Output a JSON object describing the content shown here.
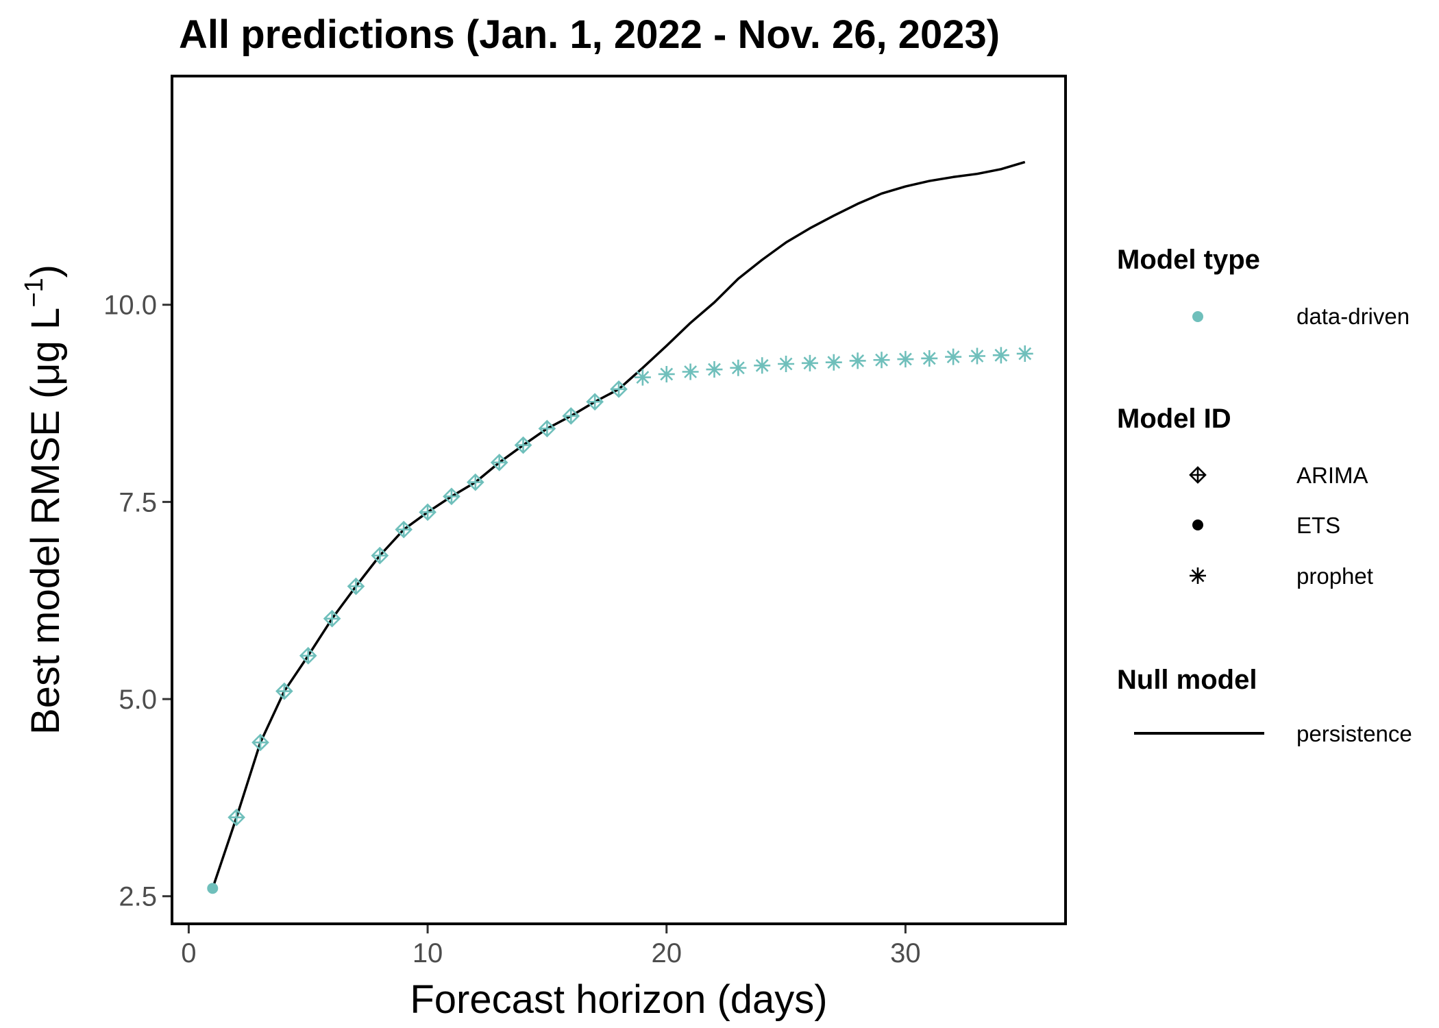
{
  "chart_data": {
    "type": "scatter",
    "title": "All predictions (Jan. 1, 2022 - Nov. 26, 2023)",
    "xlabel": "Forecast horizon (days)",
    "ylabel": "Best model RMSE (μg L⁻¹)",
    "ylabel_main": "Best model RMSE (μg L",
    "ylabel_sup": "−1",
    "ylabel_end": ")",
    "xlim": [
      -0.7,
      36.7
    ],
    "ylim": [
      2.15,
      12.9
    ],
    "x_ticks": [
      0,
      10,
      20,
      30
    ],
    "x_tick_labels": [
      "0",
      "10",
      "20",
      "30"
    ],
    "y_ticks": [
      2.5,
      5.0,
      7.5,
      10.0
    ],
    "y_tick_labels": [
      "2.5",
      "5.0",
      "7.5",
      "10.0"
    ],
    "grid": false,
    "legend_position": "right",
    "point_color": "#6fbfbb",
    "line_color": "#000000",
    "series": [
      {
        "name": "data-driven",
        "model_type": "data-driven",
        "x": [
          1,
          2,
          3,
          4,
          5,
          6,
          7,
          8,
          9,
          10,
          11,
          12,
          13,
          14,
          15,
          16,
          17,
          18,
          19,
          20,
          21,
          22,
          23,
          24,
          25,
          26,
          27,
          28,
          29,
          30,
          31,
          32,
          33,
          34,
          35
        ],
        "y": [
          2.6,
          3.5,
          4.45,
          5.1,
          5.55,
          6.02,
          6.43,
          6.82,
          7.15,
          7.37,
          7.57,
          7.75,
          8.0,
          8.22,
          8.43,
          8.59,
          8.77,
          8.93,
          9.08,
          9.12,
          9.15,
          9.18,
          9.2,
          9.23,
          9.25,
          9.26,
          9.27,
          9.29,
          9.3,
          9.31,
          9.32,
          9.34,
          9.35,
          9.36,
          9.38
        ],
        "model_id": [
          "ETS",
          "ARIMA",
          "ARIMA",
          "ARIMA",
          "ARIMA",
          "ARIMA",
          "ARIMA",
          "ARIMA",
          "ARIMA",
          "ARIMA",
          "ARIMA",
          "ARIMA",
          "ARIMA",
          "ARIMA",
          "ARIMA",
          "ARIMA",
          "ARIMA",
          "ARIMA",
          "prophet",
          "prophet",
          "prophet",
          "prophet",
          "prophet",
          "prophet",
          "prophet",
          "prophet",
          "prophet",
          "prophet",
          "prophet",
          "prophet",
          "prophet",
          "prophet",
          "prophet",
          "prophet",
          "prophet"
        ]
      },
      {
        "name": "persistence",
        "type": "line",
        "x": [
          1,
          2,
          3,
          4,
          5,
          6,
          7,
          8,
          9,
          10,
          11,
          12,
          13,
          14,
          15,
          16,
          17,
          18,
          19,
          20,
          21,
          22,
          23,
          24,
          25,
          26,
          27,
          28,
          29,
          30,
          31,
          32,
          33,
          34,
          35
        ],
        "y": [
          2.6,
          3.5,
          4.45,
          5.1,
          5.55,
          6.02,
          6.43,
          6.82,
          7.15,
          7.37,
          7.57,
          7.75,
          8.0,
          8.22,
          8.43,
          8.59,
          8.77,
          8.93,
          9.2,
          9.48,
          9.77,
          10.03,
          10.33,
          10.57,
          10.79,
          10.97,
          11.13,
          11.28,
          11.41,
          11.5,
          11.57,
          11.62,
          11.66,
          11.72,
          11.81
        ]
      }
    ]
  },
  "legend": {
    "model_type": {
      "title": "Model type",
      "items": [
        {
          "label": "data-driven",
          "color": "#6fbfbb",
          "shape": "filled-circle"
        }
      ]
    },
    "model_id": {
      "title": "Model ID",
      "items": [
        {
          "label": "ARIMA",
          "shape": "diamond-plus"
        },
        {
          "label": "ETS",
          "shape": "filled-circle"
        },
        {
          "label": "prophet",
          "shape": "asterisk"
        }
      ]
    },
    "null_model": {
      "title": "Null model",
      "items": [
        {
          "label": "persistence",
          "shape": "line"
        }
      ]
    }
  }
}
